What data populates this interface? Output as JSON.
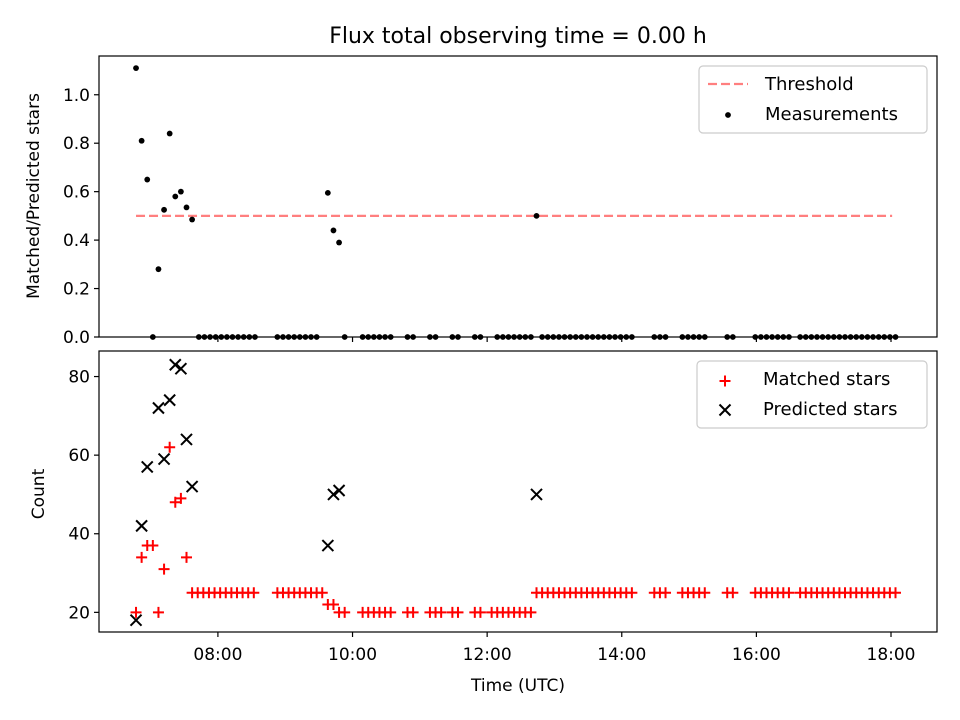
{
  "chart_data": [
    {
      "type": "scatter",
      "title": "Flux total observing time = 0.00 h",
      "xlabel": "",
      "ylabel": "Matched/Predicted stars",
      "ylim": [
        0,
        1.16
      ],
      "yticks": [
        "0.0",
        "0.2",
        "0.4",
        "0.6",
        "0.8",
        "1.0"
      ],
      "legend": {
        "position": "top-right",
        "entries": [
          {
            "label": "Threshold",
            "style": "dashed-line",
            "color": "#ff7f7f"
          },
          {
            "label": "Measurements",
            "style": "dot",
            "color": "#000000"
          }
        ]
      },
      "threshold": {
        "name": "Threshold",
        "y": 0.5,
        "x_start": "06:47",
        "x_end": "18:01",
        "color": "#ff7f7f"
      },
      "series": [
        {
          "name": "Measurements",
          "color": "#000000",
          "points": [
            [
              "06:47",
              1.11
            ],
            [
              "06:52",
              0.81
            ],
            [
              "06:57",
              0.65
            ],
            [
              "07:02",
              0.0
            ],
            [
              "07:07",
              0.28
            ],
            [
              "07:12",
              0.525
            ],
            [
              "07:17",
              0.84
            ],
            [
              "07:22",
              0.58
            ],
            [
              "07:27",
              0.6
            ],
            [
              "07:32",
              0.535
            ],
            [
              "07:37",
              0.485
            ],
            [
              "09:38",
              0.595
            ],
            [
              "09:43",
              0.44
            ],
            [
              "09:48",
              0.39
            ],
            [
              "09:53",
              0.0
            ],
            [
              "12:44",
              0.5
            ]
          ]
        },
        {
          "name": "Measurements-zero",
          "color": "#000000",
          "y": 0.0,
          "ranges": [
            [
              "07:43",
              "08:33"
            ],
            [
              "08:53",
              "09:28"
            ],
            [
              "10:09",
              "10:34"
            ],
            [
              "10:49",
              "10:54"
            ],
            [
              "11:09",
              "11:14"
            ],
            [
              "11:29",
              "11:34"
            ],
            [
              "11:49",
              "11:54"
            ],
            [
              "12:09",
              "12:39"
            ],
            [
              "12:49",
              "14:09"
            ],
            [
              "14:29",
              "14:39"
            ],
            [
              "14:54",
              "15:04"
            ],
            [
              "15:09",
              "15:14"
            ],
            [
              "15:34",
              "15:39"
            ],
            [
              "15:59",
              "16:29"
            ],
            [
              "16:39",
              "17:59"
            ],
            [
              "18:04",
              "18:04"
            ]
          ]
        }
      ]
    },
    {
      "type": "scatter",
      "title": "",
      "xlabel": "Time (UTC)",
      "ylabel": "Count",
      "ylim": [
        15,
        86.5
      ],
      "yticks": [
        "20",
        "40",
        "60",
        "80"
      ],
      "xticks": [
        "08:00",
        "10:00",
        "12:00",
        "14:00",
        "16:00",
        "18:00"
      ],
      "xlim": [
        "06:14",
        "18:41"
      ],
      "legend": {
        "position": "top-right",
        "entries": [
          {
            "label": "Matched stars",
            "style": "plus",
            "color": "#ff0000"
          },
          {
            "label": "Predicted stars",
            "style": "x",
            "color": "#000000"
          }
        ]
      },
      "series": [
        {
          "name": "Matched stars",
          "color": "#ff0000",
          "points": [
            [
              "06:47",
              20
            ],
            [
              "06:52",
              34
            ],
            [
              "06:57",
              37
            ],
            [
              "07:02",
              37
            ],
            [
              "07:07",
              20
            ],
            [
              "07:12",
              31
            ],
            [
              "07:17",
              62
            ],
            [
              "07:22",
              48
            ],
            [
              "07:27",
              49
            ],
            [
              "07:32",
              34
            ],
            [
              "09:38",
              22
            ],
            [
              "09:43",
              22
            ],
            [
              "09:48",
              20
            ],
            [
              "09:53",
              20
            ],
            [
              "12:44",
              25
            ]
          ],
          "ranges": [
            {
              "y": 25,
              "from": "07:37",
              "to": "08:33"
            },
            {
              "y": 25,
              "from": "08:53",
              "to": "09:33"
            },
            {
              "y": 20,
              "from": "10:09",
              "to": "10:34"
            },
            {
              "y": 20,
              "from": "10:49",
              "to": "10:54"
            },
            {
              "y": 20,
              "from": "11:09",
              "to": "11:19"
            },
            {
              "y": 20,
              "from": "11:29",
              "to": "11:34"
            },
            {
              "y": 20,
              "from": "11:49",
              "to": "11:54"
            },
            {
              "y": 20,
              "from": "12:04",
              "to": "12:39"
            },
            {
              "y": 25,
              "from": "12:49",
              "to": "14:09"
            },
            {
              "y": 25,
              "from": "14:29",
              "to": "14:39"
            },
            {
              "y": 25,
              "from": "14:54",
              "to": "15:04"
            },
            {
              "y": 25,
              "from": "15:09",
              "to": "15:14"
            },
            {
              "y": 25,
              "from": "15:34",
              "to": "15:39"
            },
            {
              "y": 25,
              "from": "15:59",
              "to": "16:29"
            },
            {
              "y": 25,
              "from": "16:39",
              "to": "17:59"
            },
            {
              "y": 25,
              "from": "18:04",
              "to": "18:04"
            }
          ]
        },
        {
          "name": "Predicted stars",
          "color": "#000000",
          "points": [
            [
              "06:47",
              18
            ],
            [
              "06:52",
              42
            ],
            [
              "06:57",
              57
            ],
            [
              "07:07",
              72
            ],
            [
              "07:12",
              59
            ],
            [
              "07:17",
              74
            ],
            [
              "07:22",
              83
            ],
            [
              "07:27",
              82
            ],
            [
              "07:32",
              64
            ],
            [
              "07:37",
              52
            ],
            [
              "09:38",
              37
            ],
            [
              "09:43",
              50
            ],
            [
              "09:48",
              51
            ],
            [
              "12:44",
              50
            ]
          ]
        }
      ]
    }
  ]
}
